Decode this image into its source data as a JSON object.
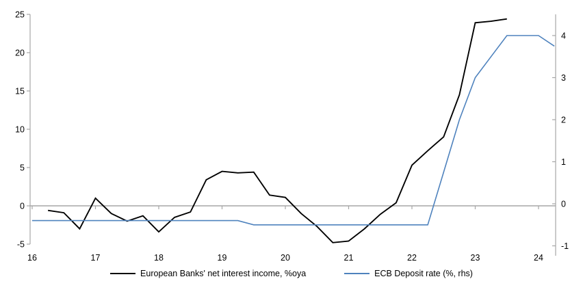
{
  "chart_data": {
    "type": "line",
    "title": "",
    "x_axis": {
      "min": 16,
      "max": 24.3,
      "ticks": [
        16,
        17,
        18,
        19,
        20,
        21,
        22,
        23,
        24
      ]
    },
    "left_axis": {
      "min": -5,
      "max": 25,
      "ticks": [
        25,
        20,
        15,
        10,
        5,
        0,
        -5
      ]
    },
    "right_axis": {
      "min": -1,
      "max": 4.5,
      "ticks": [
        4,
        3,
        2,
        1,
        0,
        -1
      ]
    },
    "grid": "zero-line-only",
    "legend_position": "bottom",
    "series": [
      {
        "name": "European Banks' net interest income, %oya",
        "axis": "left",
        "color": "#000000",
        "line_width": 1.9,
        "x": [
          16.25,
          16.5,
          16.75,
          17.0,
          17.25,
          17.5,
          17.75,
          18.0,
          18.25,
          18.5,
          18.75,
          19.0,
          19.25,
          19.5,
          19.75,
          20.0,
          20.25,
          20.5,
          20.75,
          21.0,
          21.25,
          21.5,
          21.75,
          22.0,
          22.25,
          22.5,
          22.75,
          23.0,
          23.25,
          23.5
        ],
        "values": [
          -0.6,
          -0.9,
          -3.0,
          1.0,
          -1.0,
          -2.0,
          -1.3,
          -3.4,
          -1.5,
          -0.8,
          3.4,
          4.5,
          4.3,
          4.4,
          1.4,
          1.1,
          -1.0,
          -2.7,
          -4.8,
          -4.6,
          -3.0,
          -1.1,
          0.4,
          5.3,
          7.2,
          9.0,
          14.5,
          23.9,
          24.1,
          24.4
        ]
      },
      {
        "name": "ECB Deposit rate (%, rhs)",
        "axis": "right",
        "color": "#4e82bd",
        "line_width": 1.6,
        "x": [
          16.0,
          16.25,
          16.5,
          16.75,
          17.0,
          17.25,
          17.5,
          17.75,
          18.0,
          18.25,
          18.5,
          18.75,
          19.0,
          19.25,
          19.5,
          19.75,
          20.0,
          20.25,
          20.5,
          20.75,
          21.0,
          21.25,
          21.5,
          21.75,
          22.0,
          22.25,
          22.5,
          22.75,
          23.0,
          23.25,
          23.5,
          23.75,
          24.0,
          24.25
        ],
        "values": [
          -0.4,
          -0.4,
          -0.4,
          -0.4,
          -0.4,
          -0.4,
          -0.4,
          -0.4,
          -0.4,
          -0.4,
          -0.4,
          -0.4,
          -0.4,
          -0.4,
          -0.5,
          -0.5,
          -0.5,
          -0.5,
          -0.5,
          -0.5,
          -0.5,
          -0.5,
          -0.5,
          -0.5,
          -0.5,
          -0.5,
          0.75,
          2.0,
          3.0,
          3.5,
          4.0,
          4.0,
          4.0,
          3.75
        ]
      }
    ],
    "colors": {
      "background": "#ffffff",
      "axis_line": "#a6a6a6",
      "zero_line": "#a6a6a6",
      "tick_label": "#000000"
    }
  }
}
